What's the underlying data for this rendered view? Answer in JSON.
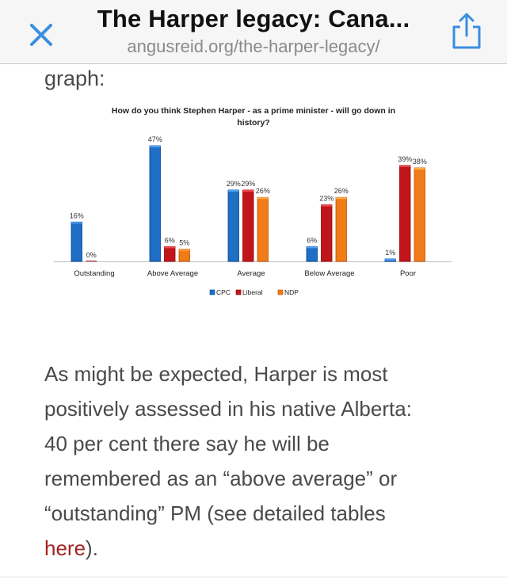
{
  "browser": {
    "title": "The Harper legacy: Cana...",
    "url": "angusreid.org/the-harper-legacy/",
    "icons": {
      "close": "close-icon",
      "share": "share-icon"
    },
    "accent_color": "#3a8ee0"
  },
  "article": {
    "fragment": "graph:",
    "paragraph_lines": [
      "As might be expected, Harper is most",
      "positively assessed in his native Alberta:",
      "40 per cent there say he will be",
      "remembered as an “above average” or",
      "“outstanding” PM (see detailed tables"
    ],
    "link_text": "here",
    "paragraph_end": ").",
    "link_color": "#a12323"
  },
  "chart_data": {
    "type": "bar",
    "title_lines": [
      "How do you think Stephen Harper - as a prime minister - will go down in",
      "history?"
    ],
    "categories": [
      "Outstanding",
      "Above Average",
      "Average",
      "Below Average",
      "Poor"
    ],
    "series": [
      {
        "name": "CPC",
        "values": [
          16,
          47,
          29,
          6,
          1
        ],
        "labels": [
          "16%",
          "47%",
          "29%",
          "6%",
          "1%"
        ],
        "color": "#1f6fc5"
      },
      {
        "name": "Liberal",
        "values": [
          0,
          6,
          29,
          23,
          39
        ],
        "labels": [
          "0%",
          "6%",
          "29%",
          "23%",
          "39%"
        ],
        "color": "#c0161b"
      },
      {
        "name": "NDP",
        "values": [
          0,
          5,
          26,
          26,
          38
        ],
        "labels": [
          "",
          "5%",
          "26%",
          "26%",
          "38%"
        ],
        "color": "#f07c18"
      }
    ],
    "ylim": [
      0,
      50
    ],
    "grid": false,
    "legend": "bottom"
  }
}
